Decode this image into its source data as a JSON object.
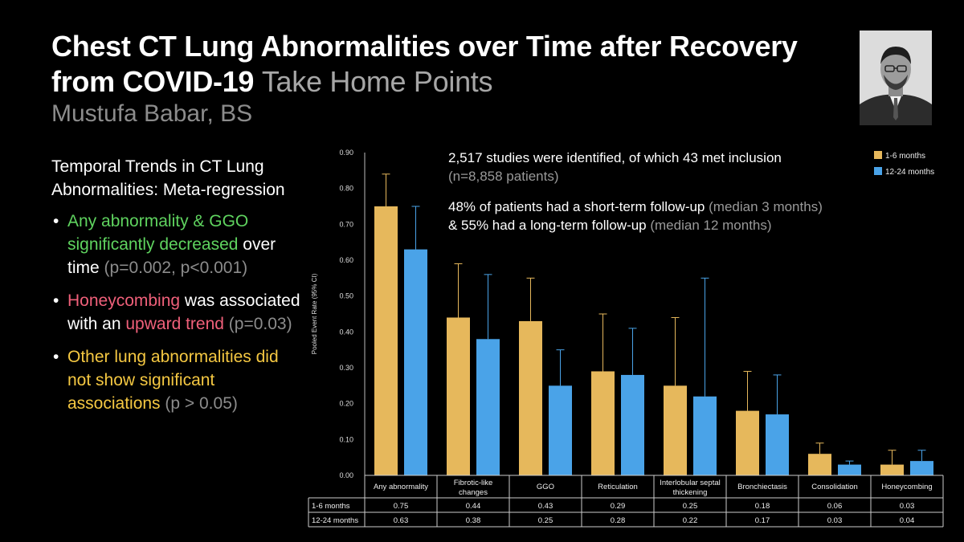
{
  "slide": {
    "title_main": "Chest CT Lung Abnormalities over Time after Recovery from COVID-19",
    "title_highlight": "Take Home Points",
    "author": "Mustufa Babar, BS",
    "photo_label": "presenter-photo"
  },
  "left_panel": {
    "heading": "Temporal Trends in CT Lung Abnormalities: Meta-regression",
    "bullets": [
      {
        "main": "Any abnormality & GGO significantly decreased",
        "rest": " over time ",
        "stat": "(p=0.002, p<0.001)"
      },
      {
        "main": "Honeycombing",
        "rest": " was associated with an ",
        "main2": "upward trend",
        "stat": " (p=0.03)"
      },
      {
        "main": "Other lung abnormalities did not show significant associations",
        "stat": " (p > 0.05)"
      }
    ],
    "bullet_symbol": "•"
  },
  "annotations": {
    "line1_main": "2,517 studies were identified, of which 43 met inclusion",
    "line1_sub": "(n=8,858 patients)",
    "line2_a": "48% of patients had a short-term follow-up ",
    "line2_b": "(median 3 months)",
    "line3_a": "& 55% had a long-term follow-up ",
    "line3_b": "(median 12 months)"
  },
  "chart_data": {
    "type": "bar",
    "ylabel": "Pooled Event Rate (95% CI)",
    "ylim": [
      0,
      0.9
    ],
    "yticks": [
      "0.00",
      "0.10",
      "0.20",
      "0.30",
      "0.40",
      "0.50",
      "0.60",
      "0.70",
      "0.80",
      "0.90"
    ],
    "categories": [
      "Any abnormality",
      "Fibrotic-like changes",
      "GGO",
      "Reticulation",
      "Interlobular septal thickening",
      "Bronchiectasis",
      "Consolidation",
      "Honeycombing"
    ],
    "category_lines": [
      [
        "Any abnormality"
      ],
      [
        "Fibrotic-like",
        "changes"
      ],
      [
        "GGO"
      ],
      [
        "Reticulation"
      ],
      [
        "Interlobular septal",
        "thickening"
      ],
      [
        "Bronchiectasis"
      ],
      [
        "Consolidation"
      ],
      [
        "Honeycombing"
      ]
    ],
    "series": [
      {
        "name": "1-6 months",
        "color": "#e6b85c",
        "values": [
          0.75,
          0.44,
          0.43,
          0.29,
          0.25,
          0.18,
          0.06,
          0.03
        ],
        "upper": [
          0.84,
          0.59,
          0.55,
          0.45,
          0.44,
          0.29,
          0.09,
          0.07
        ],
        "labels": [
          "0.75",
          "0.44",
          "0.43",
          "0.29",
          "0.25",
          "0.18",
          "0.06",
          "0.03"
        ]
      },
      {
        "name": "12-24 months",
        "color": "#4aa3e8",
        "values": [
          0.63,
          0.38,
          0.25,
          0.28,
          0.22,
          0.17,
          0.03,
          0.04
        ],
        "upper": [
          0.75,
          0.56,
          0.35,
          0.41,
          0.55,
          0.28,
          0.04,
          0.07
        ],
        "labels": [
          "0.63",
          "0.38",
          "0.25",
          "0.28",
          "0.22",
          "0.17",
          "0.03",
          "0.04"
        ]
      }
    ],
    "legend": [
      "1-6 months",
      "12-24 months"
    ],
    "table_row_labels": [
      "1-6 months",
      "12-24 months"
    ]
  }
}
